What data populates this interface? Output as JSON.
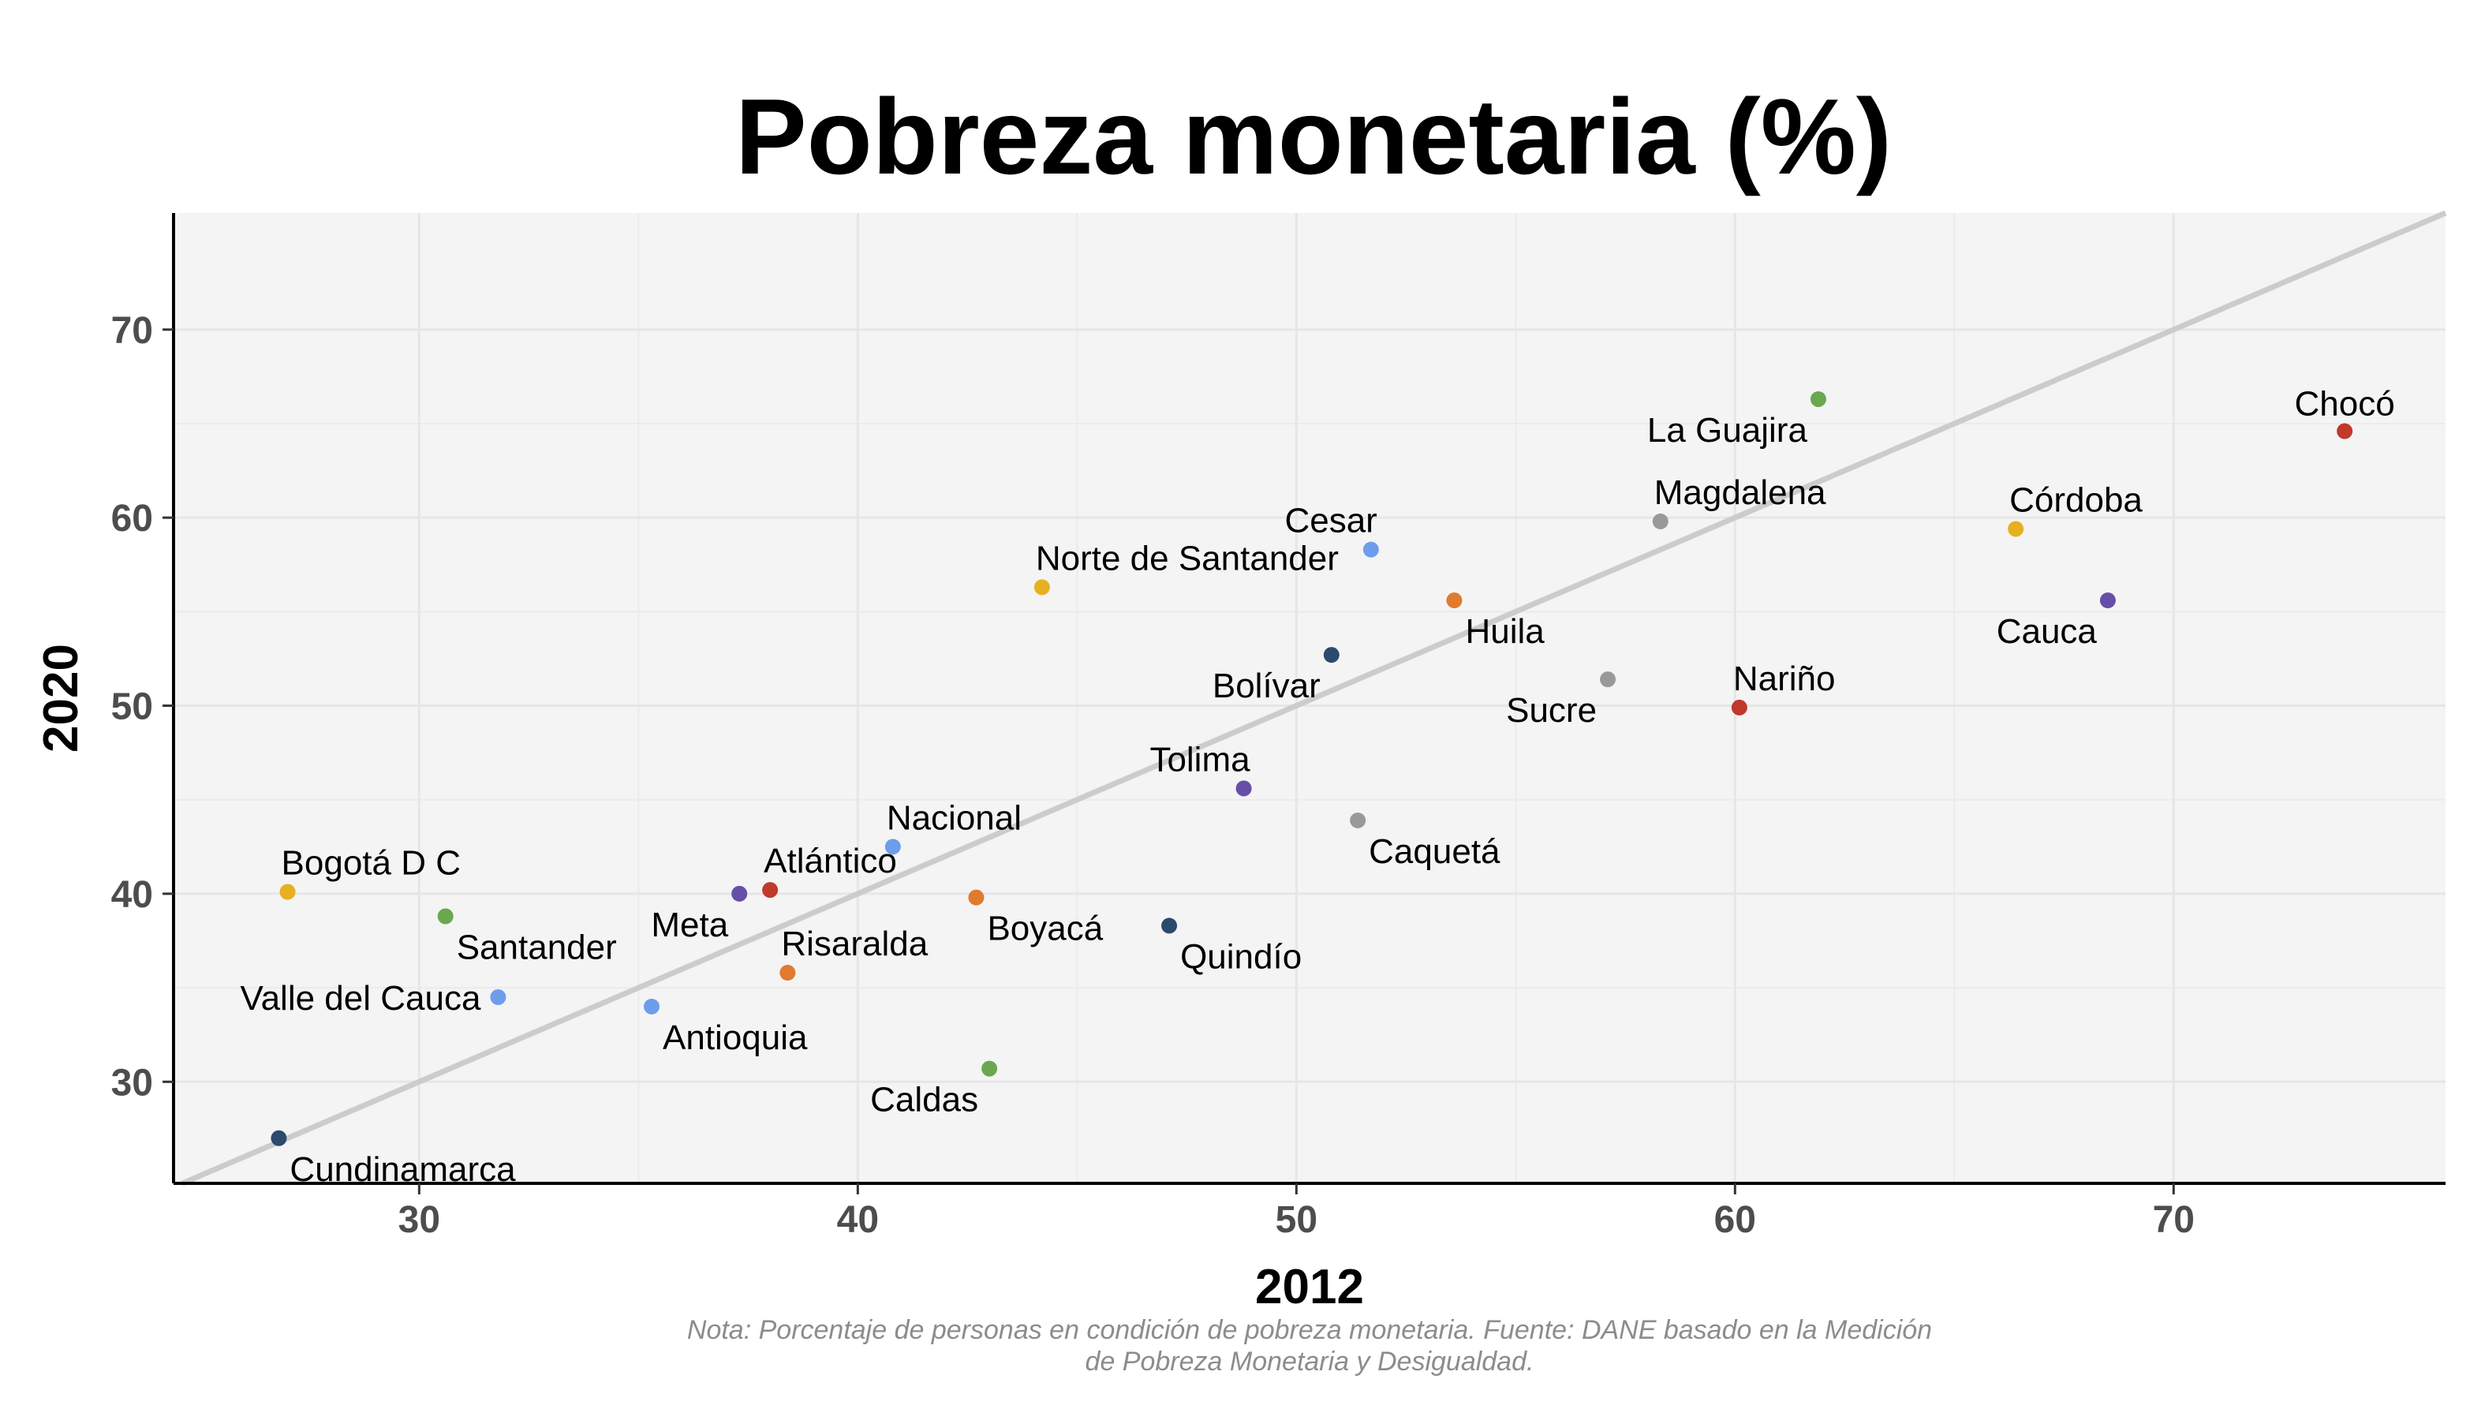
{
  "chart_data": {
    "type": "scatter",
    "title": "Pobreza monetaria (%)",
    "xlabel": "2012",
    "ylabel": "2020",
    "xlim": [
      24.4,
      76.2
    ],
    "ylim": [
      24.6,
      76.2
    ],
    "xticks": [
      30,
      40,
      50,
      60,
      70
    ],
    "yticks": [
      30,
      40,
      50,
      60,
      70
    ],
    "grid": true,
    "reference_line": "y = x",
    "caption_lines": [
      "Nota: Porcentaje de personas en condición de pobreza monetaria. Fuente: DANE basado en la Medición",
      "de Pobreza Monetaria y Desigualdad."
    ],
    "points": [
      {
        "label": "Chocó",
        "x": 73.9,
        "y": 64.6,
        "color": "#c0392b",
        "lpos": "above"
      },
      {
        "label": "La Guajira",
        "x": 61.9,
        "y": 66.3,
        "color": "#6aa84f",
        "lpos": "below-left"
      },
      {
        "label": "Córdoba",
        "x": 66.4,
        "y": 59.4,
        "color": "#e6b020",
        "lpos": "above-right"
      },
      {
        "label": "Magdalena",
        "x": 58.3,
        "y": 59.8,
        "color": "#999999",
        "lpos": "above-right"
      },
      {
        "label": "Cesar",
        "x": 51.7,
        "y": 58.3,
        "color": "#6d9eeb",
        "lpos": "above-left"
      },
      {
        "label": "Norte de Santander",
        "x": 44.2,
        "y": 56.3,
        "color": "#e6b020",
        "lpos": "above-right"
      },
      {
        "label": "Cauca",
        "x": 68.5,
        "y": 55.6,
        "color": "#674ea7",
        "lpos": "below-left"
      },
      {
        "label": "Huila",
        "x": 53.6,
        "y": 55.6,
        "color": "#e07a2e",
        "lpos": "below-right"
      },
      {
        "label": "Bolívar",
        "x": 50.8,
        "y": 52.7,
        "color": "#2c4a6e",
        "lpos": "below-left"
      },
      {
        "label": "Sucre",
        "x": 57.1,
        "y": 51.4,
        "color": "#999999",
        "lpos": "below-left"
      },
      {
        "label": "Nariño",
        "x": 60.1,
        "y": 49.9,
        "color": "#c0392b",
        "lpos": "above-right"
      },
      {
        "label": "Tolima",
        "x": 48.8,
        "y": 45.6,
        "color": "#674ea7",
        "lpos": "above-left"
      },
      {
        "label": "Caquetá",
        "x": 51.4,
        "y": 43.9,
        "color": "#999999",
        "lpos": "below-right"
      },
      {
        "label": "Nacional",
        "x": 40.8,
        "y": 42.5,
        "color": "#6d9eeb",
        "lpos": "above-right"
      },
      {
        "label": "Bogotá D C",
        "x": 27.0,
        "y": 40.1,
        "color": "#e6b020",
        "lpos": "above-right"
      },
      {
        "label": "Atlántico",
        "x": 38.0,
        "y": 40.2,
        "color": "#c0392b",
        "lpos": "above-right"
      },
      {
        "label": "Meta",
        "x": 37.3,
        "y": 40.0,
        "color": "#674ea7",
        "lpos": "below-left"
      },
      {
        "label": "Boyacá",
        "x": 42.7,
        "y": 39.8,
        "color": "#e07a2e",
        "lpos": "below-right"
      },
      {
        "label": "Santander",
        "x": 30.6,
        "y": 38.8,
        "color": "#6aa84f",
        "lpos": "below-right"
      },
      {
        "label": "Quindío",
        "x": 47.1,
        "y": 38.3,
        "color": "#2c4a6e",
        "lpos": "below-right"
      },
      {
        "label": "Risaralda",
        "x": 38.4,
        "y": 35.8,
        "color": "#e07a2e",
        "lpos": "above-right"
      },
      {
        "label": "Valle del Cauca",
        "x": 31.8,
        "y": 34.5,
        "color": "#6d9eeb",
        "lpos": "left"
      },
      {
        "label": "Antioquia",
        "x": 35.3,
        "y": 34.0,
        "color": "#6d9eeb",
        "lpos": "below-right"
      },
      {
        "label": "Caldas",
        "x": 43.0,
        "y": 30.7,
        "color": "#6aa84f",
        "lpos": "below-left"
      },
      {
        "label": "Cundinamarca",
        "x": 26.8,
        "y": 27.0,
        "color": "#2c4a6e",
        "lpos": "below-right"
      }
    ]
  }
}
